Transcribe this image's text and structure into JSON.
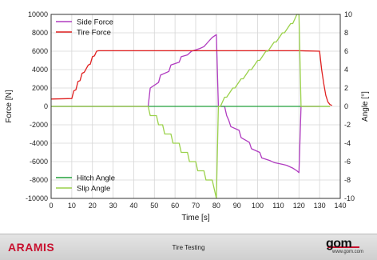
{
  "chart_data": {
    "type": "line",
    "xlabel": "Time [s]",
    "ylabel_left": "Force [N]",
    "ylabel_right": "Angle [°]",
    "xlim": [
      0,
      140
    ],
    "ylim_left": [
      -10000,
      10000
    ],
    "ylim_right": [
      -10,
      10
    ],
    "x_ticks": [
      0,
      10,
      20,
      30,
      40,
      50,
      60,
      70,
      80,
      90,
      100,
      110,
      120,
      130,
      140
    ],
    "y_left_ticks": [
      10000,
      8000,
      6000,
      4000,
      2000,
      0,
      -2000,
      -4000,
      -6000,
      -8000,
      -10000
    ],
    "y_right_ticks": [
      10,
      8,
      6,
      4,
      2,
      0,
      -2,
      -4,
      -6,
      -8,
      -10
    ],
    "grid": true,
    "legends": [
      {
        "placement": "top-left",
        "entries": [
          "Side Force",
          "Tire Force"
        ]
      },
      {
        "placement": "bottom-left",
        "entries": [
          "Hitch Angle",
          "Slip Angle"
        ]
      }
    ],
    "series": [
      {
        "name": "Side Force",
        "axis": "left",
        "color": "#b03cc0",
        "x": [
          0,
          47,
          48,
          52,
          53,
          57,
          58,
          62,
          63,
          66,
          68,
          72,
          74,
          76,
          78,
          80,
          81,
          82,
          83,
          84,
          85,
          86,
          87,
          91,
          92,
          96,
          97,
          101,
          102,
          106,
          108,
          112,
          114,
          117,
          119,
          120,
          121,
          125,
          128,
          130
        ],
        "y": [
          0,
          0,
          2000,
          2600,
          3400,
          3800,
          4500,
          4800,
          5400,
          5600,
          6000,
          6300,
          6500,
          7000,
          7500,
          7800,
          0,
          0,
          0,
          0,
          -1000,
          -1500,
          -2200,
          -2600,
          -3400,
          -3900,
          -4600,
          -5000,
          -5600,
          -5900,
          -6100,
          -6300,
          -6400,
          -6700,
          -7000,
          -7200,
          0,
          0,
          0,
          0
        ]
      },
      {
        "name": "Tire Force",
        "axis": "left",
        "color": "#e02020",
        "x": [
          0,
          10,
          11,
          12,
          13,
          14,
          15,
          16,
          18,
          19,
          20,
          21,
          22,
          23,
          24,
          120,
          130,
          131,
          132,
          133,
          134,
          135,
          136
        ],
        "y": [
          800,
          850,
          1700,
          1800,
          2700,
          2800,
          3600,
          3700,
          4500,
          4600,
          5400,
          5500,
          6000,
          6050,
          6050,
          6050,
          6000,
          4000,
          2500,
          1200,
          500,
          200,
          100
        ]
      },
      {
        "name": "Hitch Angle",
        "axis": "right",
        "color": "#22a03a",
        "x": [
          0,
          10,
          20,
          40,
          60,
          80,
          100,
          120,
          130,
          135
        ],
        "y": [
          0,
          0,
          0,
          0,
          0,
          0,
          0,
          0,
          0,
          0
        ]
      },
      {
        "name": "Slip Angle",
        "axis": "right",
        "color": "#9ad14a",
        "x": [
          0,
          47,
          48,
          51,
          52,
          54,
          55,
          58,
          59,
          62,
          63,
          66,
          67,
          70,
          71,
          74,
          75,
          78,
          79,
          80,
          81,
          82,
          84,
          85,
          88,
          89,
          92,
          93,
          96,
          97,
          100,
          101,
          104,
          105,
          108,
          109,
          112,
          113,
          116,
          117,
          119,
          120,
          121,
          130,
          135
        ],
        "y": [
          0,
          0,
          -1,
          -1,
          -2,
          -2,
          -3,
          -3,
          -4,
          -4,
          -5,
          -5,
          -6,
          -6,
          -7,
          -7,
          -8,
          -8,
          -9,
          -10,
          0,
          0,
          1,
          1,
          2,
          2,
          3,
          3,
          4,
          4,
          5,
          5,
          6,
          6,
          7,
          7,
          8,
          8,
          9,
          9,
          10,
          10,
          0,
          0,
          0
        ]
      }
    ]
  },
  "footer": {
    "brand": "ARAMIS",
    "title": "Tire Testing",
    "logo": "gom",
    "url": "www.gom.com"
  }
}
